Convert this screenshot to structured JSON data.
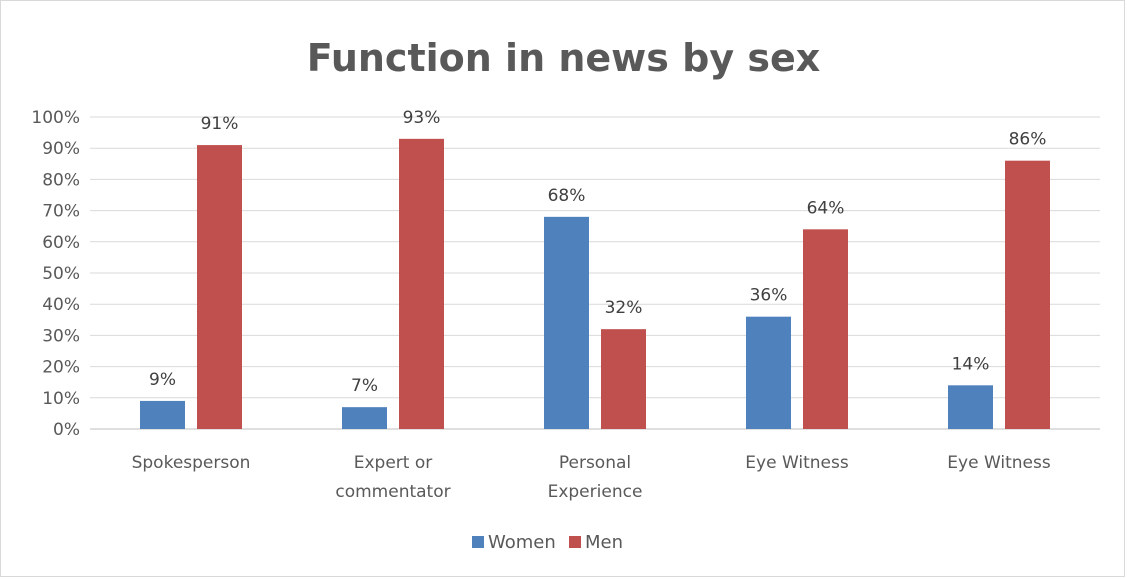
{
  "chart_data": {
    "type": "bar",
    "title": "Function in news by sex",
    "categories": [
      [
        "Spokesperson"
      ],
      [
        "Expert or",
        "commentator"
      ],
      [
        "Personal",
        "Experience"
      ],
      [
        "Eye Witness"
      ],
      [
        "Eye Witness"
      ]
    ],
    "series": [
      {
        "name": "Women",
        "color": "#4f81bd",
        "values": [
          9,
          7,
          68,
          36,
          14
        ],
        "labels": [
          "9%",
          "7%",
          "68%",
          "36%",
          "14%"
        ]
      },
      {
        "name": "Men",
        "color": "#c0504d",
        "values": [
          91,
          93,
          32,
          64,
          86
        ],
        "labels": [
          "91%",
          "93%",
          "32%",
          "64%",
          "86%"
        ]
      }
    ],
    "yticks": [
      "0%",
      "10%",
      "20%",
      "30%",
      "40%",
      "50%",
      "60%",
      "70%",
      "80%",
      "90%",
      "100%"
    ],
    "ylim": [
      0,
      100
    ],
    "grid": true,
    "legend_position": "bottom"
  }
}
